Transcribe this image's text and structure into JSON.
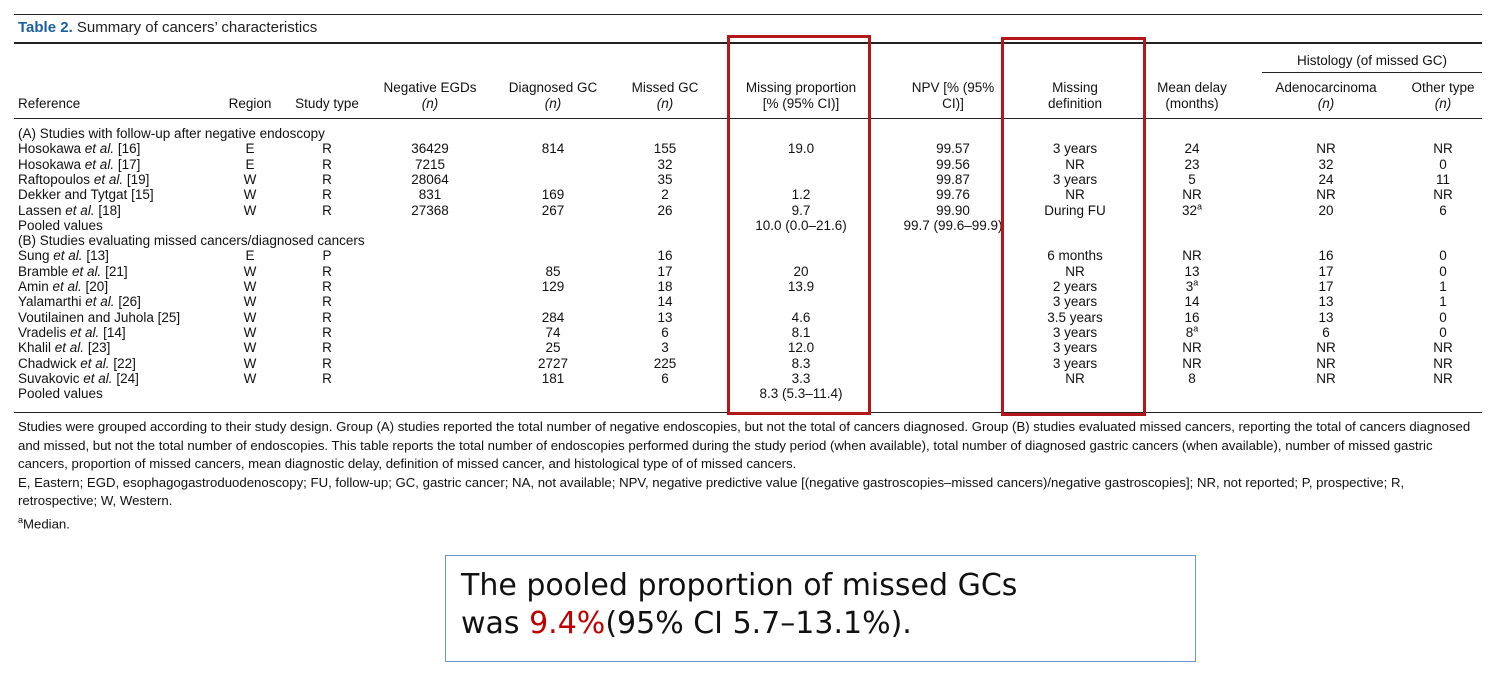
{
  "table": {
    "label": "Table 2.",
    "title": "Summary of cancers’ characteristics",
    "header": {
      "histology_group": "Histology (of missed GC)",
      "columns": [
        {
          "key": "reference",
          "line1": "Reference",
          "line2": ""
        },
        {
          "key": "region",
          "line1": "Region",
          "line2": ""
        },
        {
          "key": "study_type",
          "line1": "Study type",
          "line2": ""
        },
        {
          "key": "negative_egds",
          "line1": "Negative EGDs",
          "line2": "(n)"
        },
        {
          "key": "diagnosed_gc",
          "line1": "Diagnosed GC",
          "line2": "(n)"
        },
        {
          "key": "missed_gc",
          "line1": "Missed GC",
          "line2": "(n)"
        },
        {
          "key": "missing_proportion",
          "line1": "Missing proportion",
          "line2": "[% (95% CI)]"
        },
        {
          "key": "npv",
          "line1": "NPV [% (95%",
          "line2": "CI)]"
        },
        {
          "key": "missing_definition",
          "line1": "Missing",
          "line2": "definition"
        },
        {
          "key": "mean_delay",
          "line1": "Mean delay",
          "line2": "(months)"
        },
        {
          "key": "adenocarcinoma",
          "line1": "Adenocarcinoma",
          "line2": "(n)"
        },
        {
          "key": "other_type",
          "line1": "Other type",
          "line2": "(n)"
        }
      ]
    },
    "groups": [
      {
        "label": "(A) Studies with follow-up after negative endoscopy",
        "rows": [
          {
            "author": "Hosokawa",
            "etal": true,
            "ref": "[16]",
            "region": "E",
            "study_type": "R",
            "negative_egds": "36429",
            "diagnosed_gc": "814",
            "missed_gc": "155",
            "missing_proportion": "19.0",
            "npv": "99.57",
            "missing_definition": "3 years",
            "mean_delay": "24",
            "delay_note": "",
            "adenocarcinoma": "NR",
            "other_type": "NR"
          },
          {
            "author": "Hosokawa",
            "etal": true,
            "ref": "[17]",
            "region": "E",
            "study_type": "R",
            "negative_egds": "7215",
            "diagnosed_gc": "",
            "missed_gc": "32",
            "missing_proportion": "",
            "npv": "99.56",
            "missing_definition": "NR",
            "mean_delay": "23",
            "delay_note": "",
            "adenocarcinoma": "32",
            "other_type": "0"
          },
          {
            "author": "Raftopoulos",
            "etal": true,
            "ref": "[19]",
            "region": "W",
            "study_type": "R",
            "negative_egds": "28064",
            "diagnosed_gc": "",
            "missed_gc": "35",
            "missing_proportion": "",
            "npv": "99.87",
            "missing_definition": "3 years",
            "mean_delay": "5",
            "delay_note": "",
            "adenocarcinoma": "24",
            "other_type": "11"
          },
          {
            "author": "Dekker and Tytgat",
            "etal": false,
            "ref": "[15]",
            "region": "W",
            "study_type": "R",
            "negative_egds": "831",
            "diagnosed_gc": "169",
            "missed_gc": "2",
            "missing_proportion": "1.2",
            "npv": "99.76",
            "missing_definition": "NR",
            "mean_delay": "NR",
            "delay_note": "",
            "adenocarcinoma": "NR",
            "other_type": "NR"
          },
          {
            "author": "Lassen",
            "etal": true,
            "ref": "[18]",
            "region": "W",
            "study_type": "R",
            "negative_egds": "27368",
            "diagnosed_gc": "267",
            "missed_gc": "26",
            "missing_proportion": "9.7",
            "npv": "99.90",
            "missing_definition": "During FU",
            "mean_delay": "32",
            "delay_note": "a",
            "adenocarcinoma": "20",
            "other_type": "6"
          }
        ],
        "pooled": {
          "label": "Pooled values",
          "missing_proportion": "10.0 (0.0–21.6)",
          "npv": "99.7 (99.6–99.9)"
        }
      },
      {
        "label": "(B) Studies evaluating missed cancers/diagnosed cancers",
        "rows": [
          {
            "author": "Sung",
            "etal": true,
            "ref": "[13]",
            "region": "E",
            "study_type": "P",
            "negative_egds": "",
            "diagnosed_gc": "",
            "missed_gc": "16",
            "missing_proportion": "",
            "npv": "",
            "missing_definition": "6 months",
            "mean_delay": "NR",
            "delay_note": "",
            "adenocarcinoma": "16",
            "other_type": "0"
          },
          {
            "author": "Bramble",
            "etal": true,
            "ref": "[21]",
            "region": "W",
            "study_type": "R",
            "negative_egds": "",
            "diagnosed_gc": "85",
            "missed_gc": "17",
            "missing_proportion": "20",
            "npv": "",
            "missing_definition": "NR",
            "mean_delay": "13",
            "delay_note": "",
            "adenocarcinoma": "17",
            "other_type": "0"
          },
          {
            "author": "Amin",
            "etal": true,
            "ref": "[20]",
            "region": "W",
            "study_type": "R",
            "negative_egds": "",
            "diagnosed_gc": "129",
            "missed_gc": "18",
            "missing_proportion": "13.9",
            "npv": "",
            "missing_definition": "2 years",
            "mean_delay": "3",
            "delay_note": "a",
            "adenocarcinoma": "17",
            "other_type": "1"
          },
          {
            "author": "Yalamarthi",
            "etal": true,
            "ref": "[26]",
            "region": "W",
            "study_type": "R",
            "negative_egds": "",
            "diagnosed_gc": "",
            "missed_gc": "14",
            "missing_proportion": "",
            "npv": "",
            "missing_definition": "3 years",
            "mean_delay": "14",
            "delay_note": "",
            "adenocarcinoma": "13",
            "other_type": "1"
          },
          {
            "author": "Voutilainen and Juhola",
            "etal": false,
            "ref": "[25]",
            "region": "W",
            "study_type": "R",
            "negative_egds": "",
            "diagnosed_gc": "284",
            "missed_gc": "13",
            "missing_proportion": "4.6",
            "npv": "",
            "missing_definition": "3.5 years",
            "mean_delay": "16",
            "delay_note": "",
            "adenocarcinoma": "13",
            "other_type": "0"
          },
          {
            "author": "Vradelis",
            "etal": true,
            "ref": "[14]",
            "region": "W",
            "study_type": "R",
            "negative_egds": "",
            "diagnosed_gc": "74",
            "missed_gc": "6",
            "missing_proportion": "8.1",
            "npv": "",
            "missing_definition": "3 years",
            "mean_delay": "8",
            "delay_note": "a",
            "adenocarcinoma": "6",
            "other_type": "0"
          },
          {
            "author": "Khalil",
            "etal": true,
            "ref": "[23]",
            "region": "W",
            "study_type": "R",
            "negative_egds": "",
            "diagnosed_gc": "25",
            "missed_gc": "3",
            "missing_proportion": "12.0",
            "npv": "",
            "missing_definition": "3 years",
            "mean_delay": "NR",
            "delay_note": "",
            "adenocarcinoma": "NR",
            "other_type": "NR"
          },
          {
            "author": "Chadwick",
            "etal": true,
            "ref": "[22]",
            "region": "W",
            "study_type": "R",
            "negative_egds": "",
            "diagnosed_gc": "2727",
            "missed_gc": "225",
            "missing_proportion": "8.3",
            "npv": "",
            "missing_definition": "3 years",
            "mean_delay": "NR",
            "delay_note": "",
            "adenocarcinoma": "NR",
            "other_type": "NR"
          },
          {
            "author": "Suvakovic",
            "etal": true,
            "ref": "[24]",
            "region": "W",
            "study_type": "R",
            "negative_egds": "",
            "diagnosed_gc": "181",
            "missed_gc": "6",
            "missing_proportion": "3.3",
            "npv": "",
            "missing_definition": "NR",
            "mean_delay": "8",
            "delay_note": "",
            "adenocarcinoma": "NR",
            "other_type": "NR"
          }
        ],
        "pooled": {
          "label": "Pooled values",
          "missing_proportion": "8.3 (5.3–11.4)",
          "npv": ""
        }
      }
    ],
    "etal_text": "et al.",
    "footnotes": {
      "design_note": "Studies were grouped according to their study design. Group (A) studies reported the total number of negative endoscopies, but not the total of cancers diagnosed. Group (B) studies evaluated missed cancers, reporting the total of cancers diagnosed and missed, but not the total number of endoscopies. This table reports the total number of endoscopies performed during the study period (when available), total number of diagnosed gastric cancers (when available), number of missed gastric cancers, proportion of missed cancers, mean diagnostic delay, definition of missed cancer, and histological type of of missed cancers.",
      "abbreviations": "E, Eastern; EGD, esophagogastroduodenoscopy; FU, follow-up; GC, gastric cancer; NA, not available; NPV, negative predictive value [(negative gastroscopies–missed cancers)/negative gastroscopies]; NR, not reported; P, prospective; R, retrospective; W, Western.",
      "median_mark": "a",
      "median_text": "Median."
    }
  },
  "callout": {
    "line1": "The pooled proportion of missed GCs",
    "line2_prefix": "was ",
    "highlight_value": "9.4%",
    "line2_suffix": "(95% CI 5.7–13.1%)."
  },
  "colors": {
    "title_label": "#1c5f9e",
    "highlight_box": "#b3161b",
    "callout_border": "#6d94c9",
    "callout_highlight": "#c00000"
  }
}
